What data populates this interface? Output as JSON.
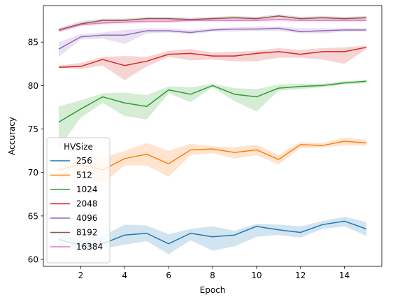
{
  "chart_data": {
    "type": "line",
    "xlabel": "Epoch",
    "ylabel": "Accuracy",
    "xlim": [
      0.3,
      15.7
    ],
    "ylim": [
      59.2,
      89.2
    ],
    "xticks": [
      2,
      4,
      6,
      8,
      10,
      12,
      14
    ],
    "yticks": [
      60,
      65,
      70,
      75,
      80,
      85
    ],
    "grid": false,
    "legend": {
      "title": "HVSize",
      "placement": "lower-left"
    },
    "x": [
      1,
      2,
      3,
      4,
      5,
      6,
      7,
      8,
      9,
      10,
      11,
      12,
      13,
      14,
      15
    ],
    "series": [
      {
        "name": "256",
        "color": "#1f77b4",
        "values": [
          62.3,
          61.6,
          61.8,
          62.8,
          63.0,
          61.8,
          63.0,
          62.6,
          62.8,
          63.8,
          63.4,
          63.1,
          64.0,
          64.4,
          63.5
        ],
        "lower": [
          61.6,
          61.0,
          61.2,
          61.7,
          62.1,
          60.6,
          62.2,
          61.0,
          61.5,
          62.6,
          62.8,
          62.5,
          63.5,
          63.8,
          62.7
        ],
        "upper": [
          63.2,
          62.2,
          62.7,
          64.0,
          63.9,
          62.9,
          63.5,
          63.8,
          63.3,
          64.1,
          64.0,
          63.8,
          64.4,
          64.9,
          64.3
        ]
      },
      {
        "name": "512",
        "color": "#ff7f0e",
        "values": [
          70.3,
          70.9,
          70.3,
          71.6,
          72.1,
          71.0,
          72.6,
          72.7,
          72.3,
          72.6,
          71.5,
          73.2,
          73.1,
          73.6,
          73.4
        ],
        "lower": [
          68.9,
          69.7,
          68.7,
          70.8,
          70.8,
          69.5,
          72.0,
          72.2,
          71.6,
          72.0,
          70.9,
          72.8,
          72.9,
          73.1,
          73.1
        ],
        "upper": [
          71.3,
          72.0,
          71.7,
          72.5,
          73.4,
          72.5,
          73.3,
          73.0,
          72.9,
          73.2,
          72.0,
          73.5,
          73.4,
          74.0,
          73.8
        ]
      },
      {
        "name": "1024",
        "color": "#2ca02c",
        "values": [
          75.8,
          77.3,
          78.7,
          78.0,
          77.6,
          79.5,
          79.0,
          80.0,
          79.0,
          78.7,
          79.7,
          79.9,
          80.0,
          80.3,
          80.5
        ],
        "lower": [
          72.8,
          76.3,
          78.0,
          76.5,
          76.1,
          79.1,
          78.1,
          79.8,
          78.2,
          77.0,
          79.4,
          79.6,
          79.8,
          80.1,
          80.3
        ],
        "upper": [
          77.6,
          78.3,
          79.1,
          79.2,
          78.9,
          79.9,
          79.8,
          80.2,
          79.7,
          79.6,
          80.1,
          80.2,
          80.2,
          80.5,
          80.6
        ]
      },
      {
        "name": "2048",
        "color": "#d62728",
        "values": [
          82.1,
          82.2,
          83.0,
          82.3,
          82.8,
          83.6,
          83.7,
          83.4,
          83.4,
          83.7,
          83.9,
          83.6,
          83.9,
          83.9,
          84.4
        ],
        "lower": [
          82.0,
          81.9,
          82.3,
          80.6,
          82.2,
          83.3,
          82.9,
          83.0,
          82.8,
          82.8,
          83.2,
          83.2,
          83.0,
          82.5,
          84.2
        ],
        "upper": [
          82.3,
          82.6,
          83.3,
          83.4,
          83.3,
          84.0,
          84.2,
          83.8,
          83.9,
          84.0,
          84.3,
          84.1,
          84.3,
          84.4,
          84.6
        ]
      },
      {
        "name": "4096",
        "color": "#9467bd",
        "values": [
          84.2,
          85.6,
          85.8,
          85.8,
          86.3,
          86.3,
          86.1,
          86.4,
          86.5,
          86.5,
          86.6,
          86.2,
          86.3,
          86.4,
          86.4
        ],
        "lower": [
          83.3,
          85.3,
          85.4,
          84.8,
          86.0,
          86.1,
          85.9,
          86.2,
          86.2,
          86.3,
          86.3,
          86.0,
          86.0,
          86.2,
          86.2
        ],
        "upper": [
          85.0,
          85.9,
          86.1,
          86.4,
          86.6,
          86.6,
          86.4,
          86.6,
          86.7,
          86.8,
          86.8,
          86.6,
          86.6,
          86.6,
          86.6
        ]
      },
      {
        "name": "8192",
        "color": "#8c564b",
        "values": [
          86.4,
          87.1,
          87.5,
          87.5,
          87.7,
          87.7,
          87.6,
          87.7,
          87.8,
          87.7,
          88.0,
          87.7,
          87.8,
          87.7,
          87.8
        ],
        "lower": [
          86.2,
          86.9,
          87.3,
          87.3,
          87.5,
          87.5,
          87.4,
          87.6,
          87.6,
          87.5,
          87.7,
          87.5,
          87.6,
          87.5,
          87.6
        ],
        "upper": [
          86.6,
          87.4,
          87.7,
          87.7,
          87.9,
          87.9,
          87.8,
          87.9,
          88.0,
          87.9,
          88.2,
          87.9,
          88.0,
          87.9,
          88.0
        ]
      },
      {
        "name": "16384",
        "color": "#e377c2",
        "values": [
          86.3,
          87.0,
          87.2,
          87.3,
          87.4,
          87.4,
          87.5,
          87.5,
          87.5,
          87.5,
          87.6,
          87.5,
          87.5,
          87.5,
          87.5
        ],
        "lower": [
          86.1,
          86.8,
          87.0,
          87.1,
          87.2,
          87.2,
          87.3,
          87.3,
          87.3,
          87.3,
          87.4,
          87.3,
          87.3,
          87.3,
          87.3
        ],
        "upper": [
          86.5,
          87.2,
          87.4,
          87.5,
          87.6,
          87.6,
          87.7,
          87.7,
          87.7,
          87.7,
          87.8,
          87.7,
          87.7,
          87.7,
          87.7
        ]
      }
    ]
  }
}
